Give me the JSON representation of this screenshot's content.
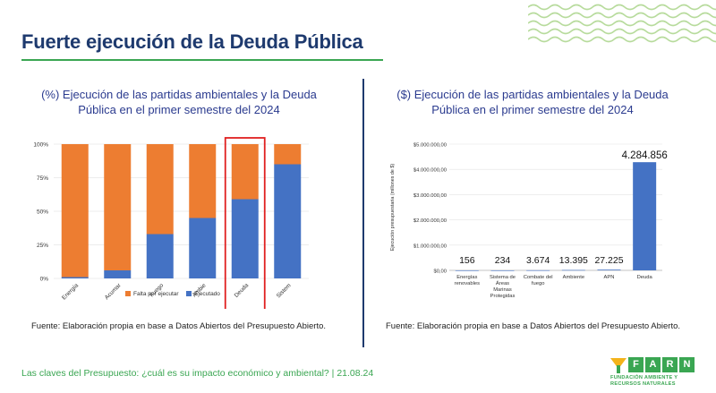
{
  "header": {
    "title": "Fuerte ejecución de la Deuda Pública"
  },
  "colors": {
    "orange": "#ed7d31",
    "blue": "#4472c4",
    "highlight": "#e02020",
    "green": "#3aa652",
    "navy": "#1e3a6e"
  },
  "chart_data": [
    {
      "type": "bar",
      "stacked": true,
      "title": "(%) Ejecución de las partidas ambientales y la Deuda Pública en el primer semestre del 2024",
      "categories": [
        "Energía",
        "Acumar",
        "Fuego",
        "Ambie",
        "Deuda",
        "Sistem"
      ],
      "series": [
        {
          "name": "Ejecutado",
          "color": "#4472c4",
          "values": [
            1,
            6,
            33,
            45,
            59,
            85
          ]
        },
        {
          "name": "Falta por ejecutar",
          "color": "#ed7d31",
          "values": [
            99,
            94,
            67,
            55,
            41,
            15
          ]
        }
      ],
      "yticks": [
        "0%",
        "25%",
        "50%",
        "75%",
        "100%"
      ],
      "ylim": [
        0,
        100
      ],
      "highlighted_category": "Deuda",
      "legend": [
        "Falta por ejecutar",
        "Ejecutado"
      ],
      "legend_position": "bottom"
    },
    {
      "type": "bar",
      "title": "($) Ejecución de las partidas ambientales y la Deuda Pública en el primer semestre del 2024",
      "ylabel": "Ejecución presupuestaria (millones de $)",
      "categories": [
        "Energías renovables",
        "Sistema de Áreas Marinas Protegidas",
        "Combate del fuego",
        "Ambiente",
        "APN",
        "Deuda"
      ],
      "category_lines": [
        [
          "Energías",
          "renovables"
        ],
        [
          "Sistema de",
          "Áreas",
          "Marinas",
          "Protegidas"
        ],
        [
          "Combate del",
          "fuego"
        ],
        [
          "Ambiente"
        ],
        [
          "APN"
        ],
        [
          "Deuda"
        ]
      ],
      "values": [
        156,
        234,
        3674,
        13395,
        27225,
        4284856
      ],
      "data_labels": [
        "156",
        "234",
        "3.674",
        "13.395",
        "27.225",
        "4.284.856"
      ],
      "yticks": [
        "$0,00",
        "$1.000.000,00",
        "$2.000.000,00",
        "$3.000.000,00",
        "$4.000.000,00",
        "$5.000.000,00"
      ],
      "ylim": [
        0,
        5000000
      ],
      "color": "#4472c4"
    }
  ],
  "sources": {
    "left": "Fuente: Elaboración propia en base a Datos Abiertos del Presupuesto Abierto.",
    "right": "Fuente: Elaboración propia en base a Datos Abiertos del Presupuesto Abierto."
  },
  "footer": {
    "text": "Las claves del Presupuesto: ¿cuál es su impacto económico y ambiental?  |  21.08.24"
  },
  "logo": {
    "letters": [
      "F",
      "A",
      "R",
      "N"
    ],
    "line1": "FUNDACIÓN AMBIENTE Y",
    "line2": "RECURSOS NATURALES"
  }
}
